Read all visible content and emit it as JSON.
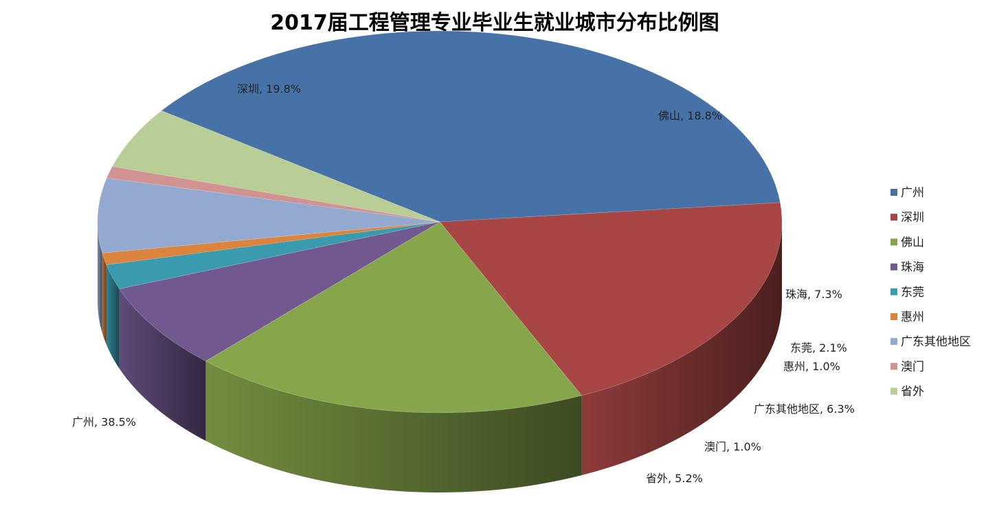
{
  "chart_data": {
    "type": "pie",
    "title": "2017届工程管理专业毕业生就业城市分布比例图",
    "categories": [
      "广州",
      "深圳",
      "佛山",
      "珠海",
      "东莞",
      "惠州",
      "广东其他地区",
      "澳门",
      "省外"
    ],
    "values": [
      38.5,
      19.8,
      18.8,
      7.3,
      2.1,
      1.0,
      6.3,
      1.0,
      5.2
    ],
    "data_labels": [
      "广州, 38.5%",
      "深圳, 19.8%",
      "佛山, 18.8%",
      "珠海, 7.3%",
      "东莞, 2.1%",
      "惠州, 1.0%",
      "广东其他地区, 6.3%",
      "澳门, 1.0%",
      "省外, 5.2%"
    ],
    "colors": [
      "#4672A8",
      "#A84545",
      "#87A64B",
      "#71588F",
      "#3A9AAE",
      "#DB843D",
      "#93A9CF",
      "#D19392",
      "#B9CD96"
    ],
    "unit": "%",
    "style": "3d-exploded-none",
    "legend": "right"
  }
}
